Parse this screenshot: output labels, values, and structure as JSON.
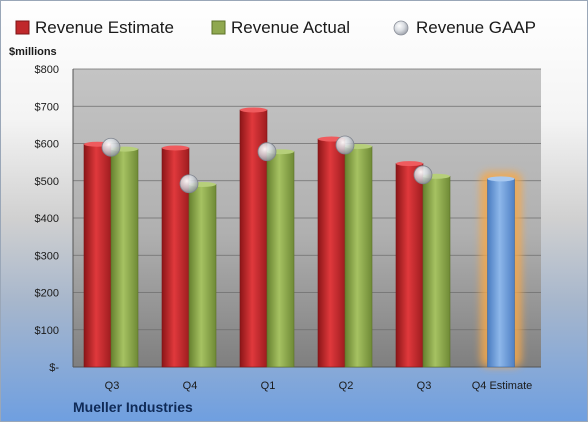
{
  "chart_data": {
    "type": "bar",
    "company": "Mueller Industries",
    "unit_label": "$millions",
    "categories": [
      "Q3",
      "Q4",
      "Q1",
      "Q2",
      "Q3",
      "Q4 Estimate"
    ],
    "y_tick_labels": [
      "$-",
      "$100",
      "$200",
      "$300",
      "$400",
      "$500",
      "$600",
      "$700",
      "$800"
    ],
    "ylim": [
      0,
      800
    ],
    "grid": true,
    "legend_position": "top",
    "series": [
      {
        "name": "Revenue Estimate",
        "kind": "bar",
        "color": "#c0282b",
        "values": [
          598,
          588,
          690,
          612,
          546,
          null
        ]
      },
      {
        "name": "Revenue Actual",
        "kind": "bar",
        "color": "#8fa84f",
        "values": [
          585,
          490,
          578,
          592,
          512,
          505
        ]
      },
      {
        "name": "Revenue GAAP",
        "kind": "marker",
        "color": "#c8ccd4",
        "values": [
          590,
          492,
          578,
          596,
          516,
          null
        ]
      }
    ],
    "highlight": {
      "category_index": 5,
      "bar_color": "#6f9fd8",
      "glow_color": "#f6a84a"
    }
  }
}
